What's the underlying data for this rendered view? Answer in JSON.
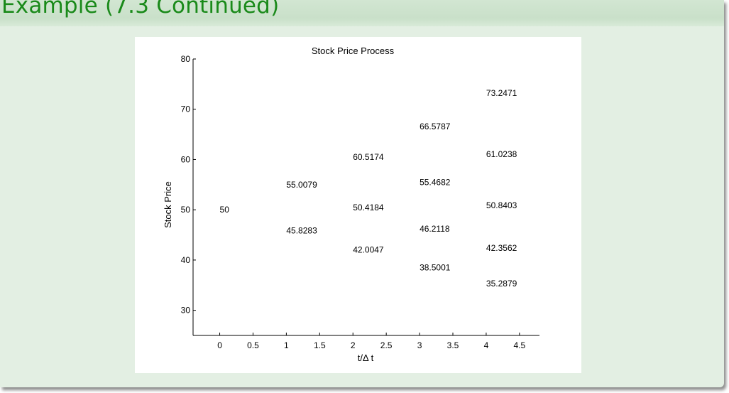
{
  "slide": {
    "title": "Example (7.3 Continued)"
  },
  "colors": {
    "title": "#1a8a1a",
    "slide_background": "#e3efe3",
    "title_bar": "#c9e0c9"
  },
  "chart_data": {
    "type": "scatter",
    "title": "Stock Price Process",
    "xlabel": "t/Δ t",
    "ylabel": "Stock Price",
    "xlim": [
      -0.4,
      4.8
    ],
    "ylim": [
      25,
      80
    ],
    "xticks": [
      "0",
      "0.5",
      "1",
      "1.5",
      "2",
      "2.5",
      "3",
      "3.5",
      "4",
      "4.5"
    ],
    "yticks": [
      "30",
      "40",
      "50",
      "60",
      "70",
      "80"
    ],
    "grid": false,
    "marker": "text-label",
    "points": [
      {
        "x": 0,
        "y": 50,
        "label": "50"
      },
      {
        "x": 1,
        "y": 55.0079,
        "label": "55.0079"
      },
      {
        "x": 1,
        "y": 45.8283,
        "label": "45.8283"
      },
      {
        "x": 2,
        "y": 60.5174,
        "label": "60.5174"
      },
      {
        "x": 2,
        "y": 50.4184,
        "label": "50.4184"
      },
      {
        "x": 2,
        "y": 42.0047,
        "label": "42.0047"
      },
      {
        "x": 3,
        "y": 66.5787,
        "label": "66.5787"
      },
      {
        "x": 3,
        "y": 55.4682,
        "label": "55.4682"
      },
      {
        "x": 3,
        "y": 46.2118,
        "label": "46.2118"
      },
      {
        "x": 3,
        "y": 38.5001,
        "label": "38.5001"
      },
      {
        "x": 4,
        "y": 73.2471,
        "label": "73.2471"
      },
      {
        "x": 4,
        "y": 61.0238,
        "label": "61.0238"
      },
      {
        "x": 4,
        "y": 50.8403,
        "label": "50.8403"
      },
      {
        "x": 4,
        "y": 42.3562,
        "label": "42.3562"
      },
      {
        "x": 4,
        "y": 35.2879,
        "label": "35.2879"
      }
    ]
  }
}
